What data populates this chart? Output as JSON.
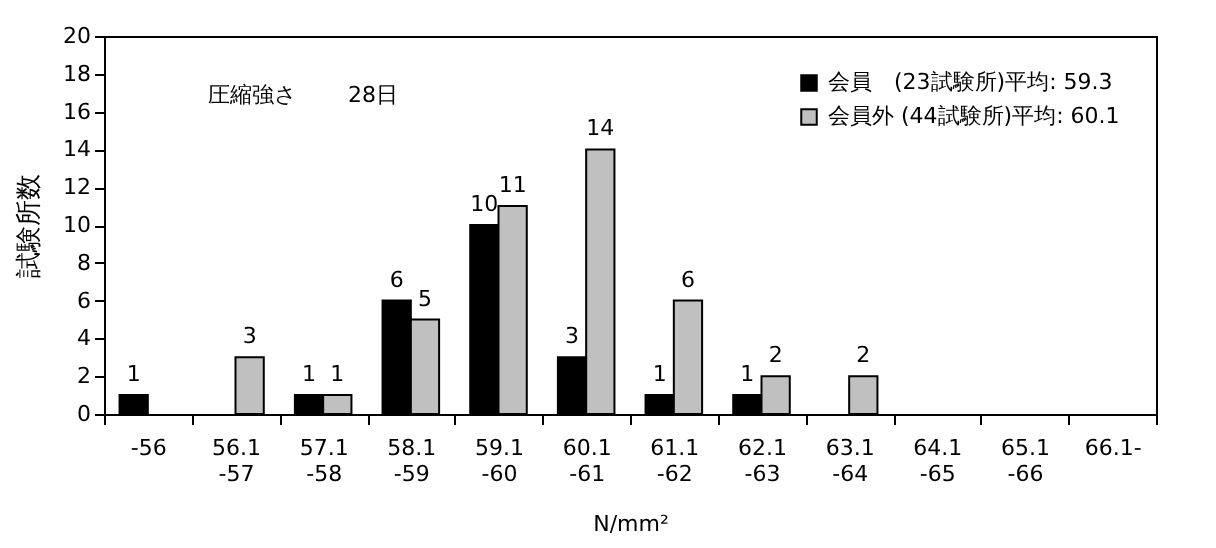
{
  "chart_data": {
    "type": "bar",
    "annotations": [
      "圧縮強さ",
      "28日"
    ],
    "xlabel": "N/mm²",
    "ylabel": "試験所数",
    "categories": [
      "-56",
      "56.1\n-57",
      "57.1\n-58",
      "58.1\n-59",
      "59.1\n-60",
      "60.1\n-61",
      "61.1\n-62",
      "62.1\n-63",
      "63.1\n-64",
      "64.1\n-65",
      "65.1\n-66",
      "66.1-"
    ],
    "series": [
      {
        "name": "会員　(23試験所)平均: 59.3",
        "color": "#000000",
        "values": [
          1,
          0,
          1,
          6,
          10,
          3,
          1,
          1,
          0,
          0,
          0,
          0
        ],
        "value_labels": [
          "1",
          null,
          "1",
          "6",
          "10",
          "3",
          "1",
          "1",
          null,
          null,
          null,
          null
        ]
      },
      {
        "name": "会員外 (44試験所)平均: 60.1",
        "color": "#c0c0c0",
        "values": [
          0,
          3,
          1,
          5,
          11,
          14,
          6,
          2,
          2,
          0,
          0,
          0
        ],
        "value_labels": [
          null,
          "3",
          "1",
          "5",
          "11",
          "14",
          "6",
          "2",
          "2",
          null,
          null,
          null
        ]
      }
    ],
    "ylim": [
      0,
      20
    ],
    "yticks": [
      0,
      2,
      4,
      6,
      8,
      10,
      12,
      14,
      16,
      18,
      20
    ],
    "grid": false,
    "legend": "top right"
  }
}
